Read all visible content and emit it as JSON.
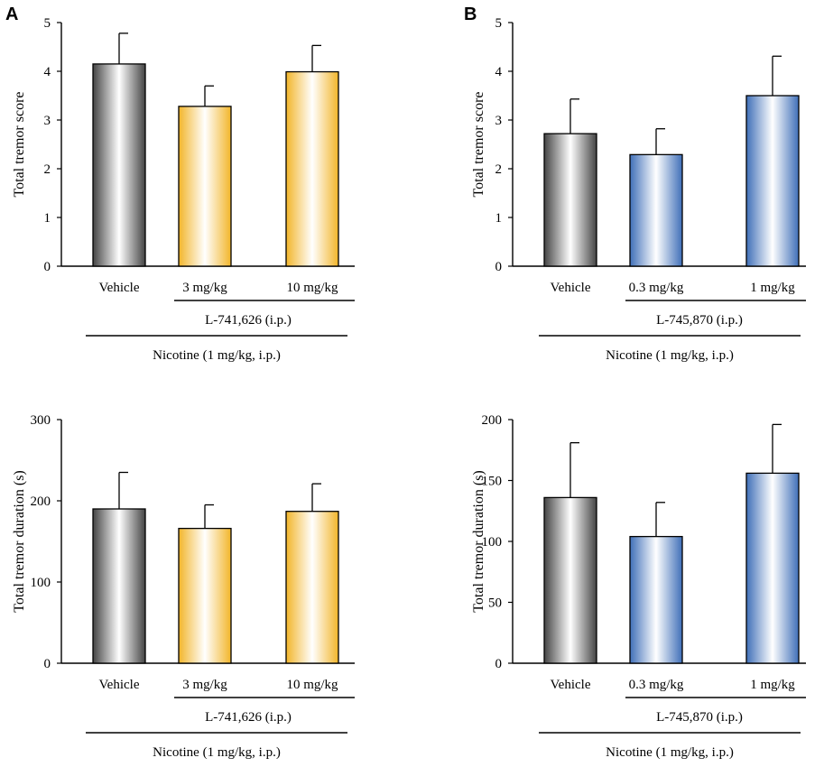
{
  "panels": [
    {
      "label": "A",
      "colors": {
        "fill": "#f2b52a"
      },
      "chart_data": {
        "type": "bar",
        "title": "",
        "ylabel": "Total tremor score",
        "xlabel": "",
        "categories": [
          "Vehicle",
          "3 mg/kg",
          "10 mg/kg"
        ],
        "values": [
          4.15,
          3.28,
          3.99
        ],
        "errors": [
          0.63,
          0.42,
          0.54
        ],
        "ylim": [
          0,
          5
        ],
        "yticks": [
          "0",
          "1",
          "2",
          "3",
          "4",
          "5"
        ],
        "drug_label": "L-741,626 (i.p.)",
        "nicotine_label": "Nicotine (1 mg/kg,  i.p.)"
      }
    },
    {
      "label": "B",
      "colors": {
        "fill": "#3f6fb8"
      },
      "chart_data": {
        "type": "bar",
        "title": "",
        "ylabel": "Total tremor score",
        "xlabel": "",
        "categories": [
          "Vehicle",
          "0.3 mg/kg",
          "1 mg/kg"
        ],
        "values": [
          2.72,
          2.29,
          3.5
        ],
        "errors": [
          0.71,
          0.53,
          0.81
        ],
        "ylim": [
          0,
          5
        ],
        "yticks": [
          "0",
          "1",
          "2",
          "3",
          "4",
          "5"
        ],
        "drug_label": "L-745,870 (i.p.)",
        "nicotine_label": "Nicotine (1 mg/kg,  i.p.)"
      }
    },
    {
      "label": "",
      "colors": {
        "fill": "#f2b52a"
      },
      "chart_data": {
        "type": "bar",
        "title": "",
        "ylabel": "Total tremor duration (s)",
        "xlabel": "",
        "categories": [
          "Vehicle",
          "3 mg/kg",
          "10 mg/kg"
        ],
        "values": [
          190,
          166,
          187
        ],
        "errors": [
          45,
          29,
          34
        ],
        "ylim": [
          0,
          300
        ],
        "yticks": [
          "0",
          "100",
          "200",
          "300"
        ],
        "drug_label": "L-741,626 (i.p.)",
        "nicotine_label": "Nicotine (1 mg/kg,  i.p.)"
      }
    },
    {
      "label": "",
      "colors": {
        "fill": "#3f6fb8"
      },
      "chart_data": {
        "type": "bar",
        "title": "",
        "ylabel": "Total tremor duration (s)",
        "xlabel": "",
        "categories": [
          "Vehicle",
          "0.3 mg/kg",
          "1 mg/kg"
        ],
        "values": [
          136,
          104,
          156
        ],
        "errors": [
          45,
          28,
          40
        ],
        "ylim": [
          0,
          200
        ],
        "yticks": [
          "0",
          "50",
          "100",
          "150",
          "200"
        ],
        "drug_label": "L-745,870 (i.p.)",
        "nicotine_label": "Nicotine (1 mg/kg,  i.p.)"
      }
    }
  ],
  "vehicle_color": "#444444"
}
